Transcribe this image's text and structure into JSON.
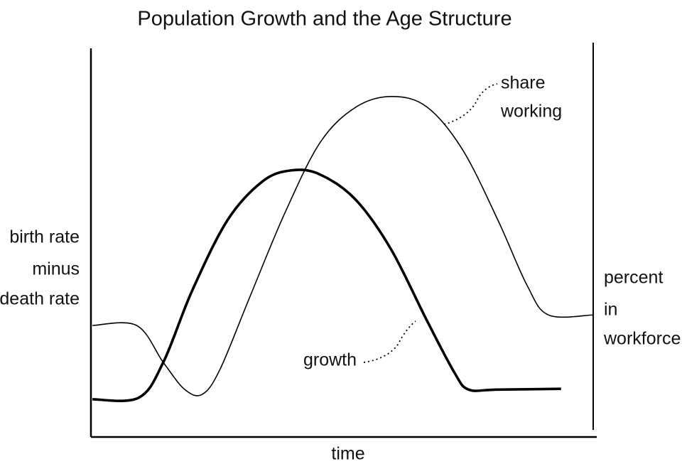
{
  "chart_data": {
    "type": "line",
    "title": "Population Growth and the Age Structure",
    "x_label": "time",
    "y_label": [
      "birth rate",
      "minus",
      "death rate"
    ],
    "y2_label": [
      "percent",
      "in",
      "workforce"
    ],
    "xlim": [
      0,
      100
    ],
    "ylim": [
      0,
      100
    ],
    "y2lim": [
      0,
      100
    ],
    "series": [
      {
        "name": "growth",
        "color": "#000000",
        "x": [
          0.3,
          9.5,
          14.4,
          20.1,
          27.2,
          34.2,
          39.9,
          45.5,
          52.6,
          59.7,
          66.8,
          72.4,
          75.2,
          80.9,
          93.6
        ],
        "values": [
          9.7,
          10.1,
          19.2,
          37.5,
          55.8,
          65.8,
          68.6,
          67.6,
          61.2,
          48.4,
          30.2,
          16.5,
          12.2,
          12.2,
          12.4
        ]
      },
      {
        "name": [
          "share",
          "working"
        ],
        "color": "#000000",
        "axis": "y2",
        "x": [
          0.3,
          9.1,
          14.4,
          18.7,
          22.2,
          25.7,
          31.5,
          38.6,
          45.7,
          52.8,
          59.9,
          66.9,
          74.0,
          81.1,
          86.8,
          91.1,
          100
        ],
        "values": [
          28.7,
          28.7,
          19.2,
          12.2,
          11.0,
          17.4,
          35.6,
          57.6,
          75.9,
          84.9,
          87.6,
          84.9,
          73.9,
          55.6,
          39.1,
          31.4,
          31.4
        ]
      }
    ]
  }
}
